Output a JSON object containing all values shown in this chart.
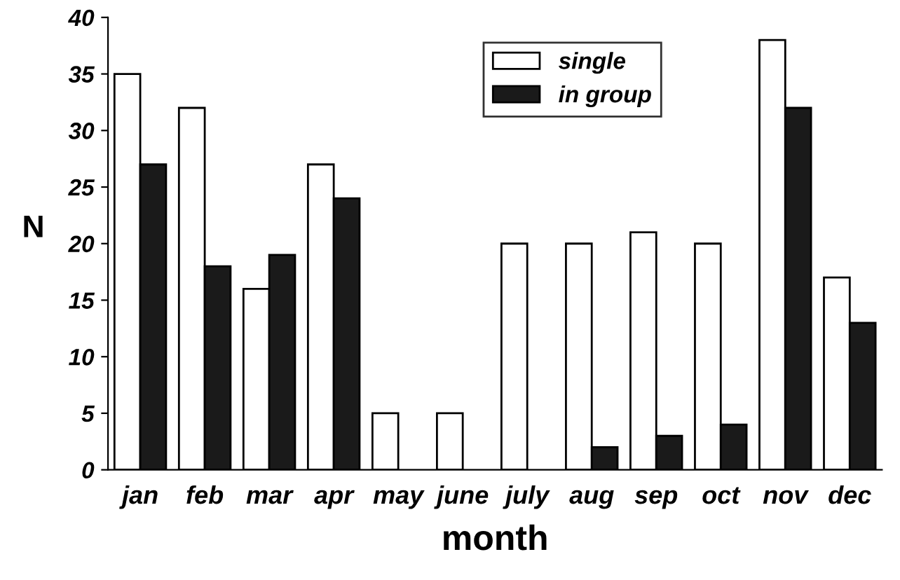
{
  "chart_data": {
    "type": "bar",
    "xlabel": "month",
    "ylabel": "N",
    "categories": [
      "jan",
      "feb",
      "mar",
      "apr",
      "may",
      "june",
      "july",
      "aug",
      "sep",
      "oct",
      "nov",
      "dec"
    ],
    "series": [
      {
        "name": "single",
        "color": "#ffffff",
        "values": [
          35,
          32,
          16,
          27,
          5,
          5,
          20,
          20,
          21,
          20,
          38,
          17
        ]
      },
      {
        "name": "in group",
        "color": "#1a1a1a",
        "values": [
          27,
          18,
          19,
          24,
          null,
          null,
          null,
          2,
          3,
          4,
          32,
          13
        ]
      }
    ],
    "ylim": [
      0,
      40
    ],
    "yticks": [
      0,
      5,
      10,
      15,
      20,
      25,
      30,
      35,
      40
    ],
    "grid": false,
    "legend": "top"
  }
}
